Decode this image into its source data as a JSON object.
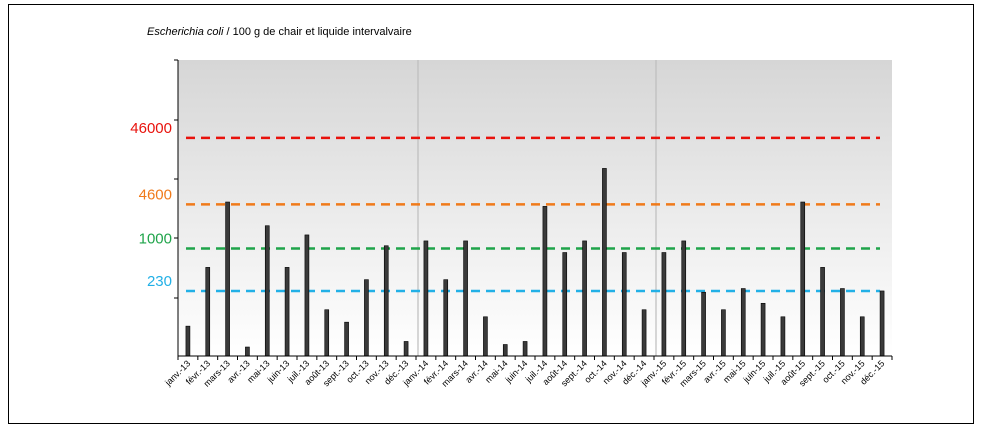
{
  "chart_data": {
    "type": "bar",
    "title_italic": "Escherichia coli",
    "title_rest": " / 100 g de chair et liquide intervalvaire",
    "yscale": "log",
    "categories": [
      "janv.-13",
      "févr.-13",
      "mars-13",
      "avr.-13",
      "mai-13",
      "juin-13",
      "juil.-13",
      "août-13",
      "sept.-13",
      "oct.-13",
      "nov.-13",
      "déc.-13",
      "janv.-14",
      "févr.-14",
      "mars-14",
      "avr.-14",
      "mai-14",
      "juin-14",
      "juil.-14",
      "août-14",
      "sept.-14",
      "oct.-14",
      "nov.-14",
      "déc.-14",
      "janv.-15",
      "févr.-15",
      "mars-15",
      "avr.-15",
      "mai-15",
      "juin-15",
      "juil.-15",
      "août-15",
      "sept.-15",
      "oct.-15",
      "nov.-15",
      "déc.-15"
    ],
    "values": [
      68,
      520,
      5000,
      33,
      2200,
      520,
      1600,
      120,
      78,
      340,
      1100,
      40,
      1300,
      340,
      1300,
      94,
      36,
      40,
      4300,
      870,
      1300,
      16000,
      870,
      120,
      870,
      1300,
      220,
      120,
      250,
      150,
      94,
      5000,
      520,
      250,
      94,
      230
    ],
    "reference_lines": [
      {
        "label": "46000",
        "value": 46000,
        "color": "#e8120c"
      },
      {
        "label": "4600",
        "value": 4600,
        "color": "#f07a1a"
      },
      {
        "label": "1000",
        "value": 1000,
        "color": "#1fa44a"
      },
      {
        "label": "230",
        "value": 230,
        "color": "#22b0e6"
      }
    ],
    "colors": {
      "bar_fill": "#3a3a3a",
      "plot_bg_top": "#d6d6d6",
      "plot_bg_bottom": "#ffffff",
      "year_divider": "#bdbdbd"
    },
    "grid": false
  }
}
